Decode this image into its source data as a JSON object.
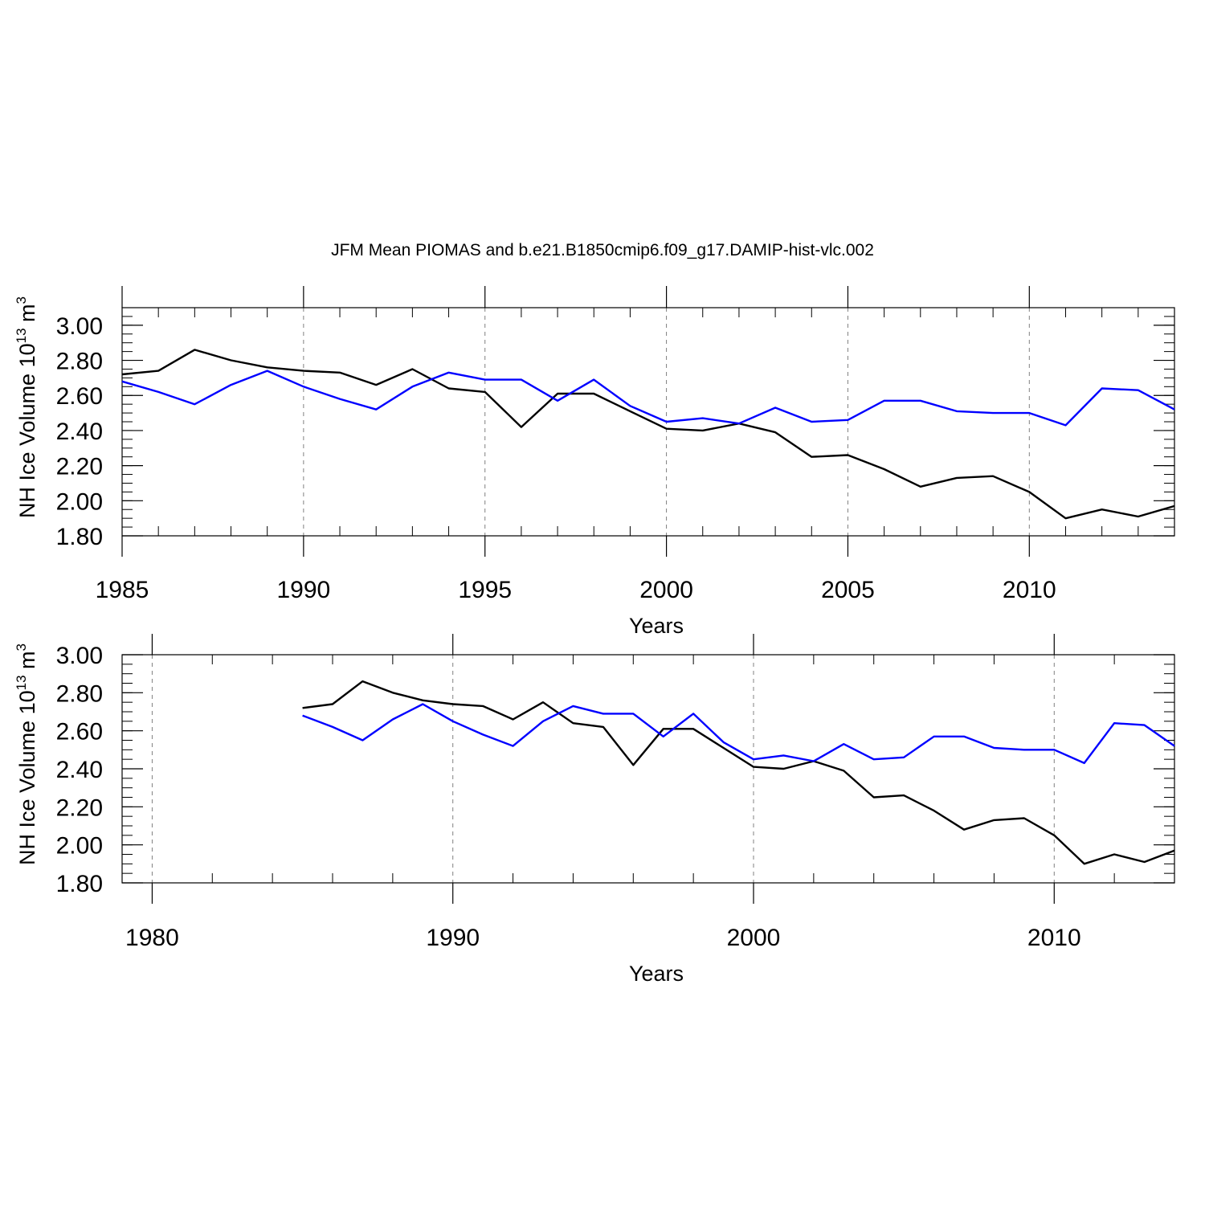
{
  "title": "JFM Mean PIOMAS and b.e21.B1850cmip6.f09_g17.DAMIP-hist-vlc.002",
  "colors": {
    "piomas": "#000000",
    "model": "#0000ff",
    "grid": "#808080",
    "axis": "#000000"
  },
  "chart_data": [
    {
      "type": "line",
      "xlabel": "Years",
      "ylabel": {
        "text": "NH Ice Volume 10",
        "sup1": "13",
        "unit": " m",
        "sup2": "3"
      },
      "xlim": [
        1985,
        2014
      ],
      "ylim": [
        1.8,
        3.1
      ],
      "x_major_ticks": [
        1985,
        1990,
        1995,
        2000,
        2005,
        2010
      ],
      "x_minor_step": 1,
      "y_ticks": [
        1.8,
        2.0,
        2.2,
        2.4,
        2.6,
        2.8,
        3.0
      ],
      "y_tick_labels": [
        "1.80",
        "2.00",
        "2.20",
        "2.40",
        "2.60",
        "2.80",
        "3.00"
      ],
      "y_minor_step": 0.05,
      "grid": "dashed vertical at major x ticks",
      "x": [
        1985,
        1986,
        1987,
        1988,
        1989,
        1990,
        1991,
        1992,
        1993,
        1994,
        1995,
        1996,
        1997,
        1998,
        1999,
        2000,
        2001,
        2002,
        2003,
        2004,
        2005,
        2006,
        2007,
        2008,
        2009,
        2010,
        2011,
        2012,
        2013,
        2014
      ],
      "series": [
        {
          "color": "#000000",
          "values": [
            2.72,
            2.74,
            2.86,
            2.8,
            2.76,
            2.74,
            2.73,
            2.66,
            2.75,
            2.64,
            2.62,
            2.42,
            2.61,
            2.61,
            2.51,
            2.41,
            2.4,
            2.44,
            2.39,
            2.25,
            2.26,
            2.18,
            2.08,
            2.13,
            2.14,
            2.05,
            1.9,
            1.95,
            1.91,
            1.97
          ]
        },
        {
          "color": "#0000ff",
          "values": [
            2.68,
            2.62,
            2.55,
            2.66,
            2.74,
            2.65,
            2.58,
            2.52,
            2.65,
            2.73,
            2.69,
            2.69,
            2.57,
            2.69,
            2.54,
            2.45,
            2.47,
            2.44,
            2.53,
            2.45,
            2.46,
            2.57,
            2.57,
            2.51,
            2.5,
            2.5,
            2.43,
            2.64,
            2.63,
            2.52
          ]
        }
      ]
    },
    {
      "type": "line",
      "xlabel": "Years",
      "ylabel": {
        "text": "NH Ice Volume 10",
        "sup1": "13",
        "unit": " m",
        "sup2": "3"
      },
      "xlim": [
        1979,
        2014
      ],
      "ylim": [
        1.8,
        3.0
      ],
      "x_major_ticks": [
        1980,
        1990,
        2000,
        2010
      ],
      "x_minor_step": 2,
      "y_ticks": [
        1.8,
        2.0,
        2.2,
        2.4,
        2.6,
        2.8,
        3.0
      ],
      "y_tick_labels": [
        "1.80",
        "2.00",
        "2.20",
        "2.40",
        "2.60",
        "2.80",
        "3.00"
      ],
      "y_minor_step": 0.05,
      "grid": "dashed vertical at major x ticks",
      "x": [
        1985,
        1986,
        1987,
        1988,
        1989,
        1990,
        1991,
        1992,
        1993,
        1994,
        1995,
        1996,
        1997,
        1998,
        1999,
        2000,
        2001,
        2002,
        2003,
        2004,
        2005,
        2006,
        2007,
        2008,
        2009,
        2010,
        2011,
        2012,
        2013,
        2014
      ],
      "series": [
        {
          "color": "#000000",
          "values": [
            2.72,
            2.74,
            2.86,
            2.8,
            2.76,
            2.74,
            2.73,
            2.66,
            2.75,
            2.64,
            2.62,
            2.42,
            2.61,
            2.61,
            2.51,
            2.41,
            2.4,
            2.44,
            2.39,
            2.25,
            2.26,
            2.18,
            2.08,
            2.13,
            2.14,
            2.05,
            1.9,
            1.95,
            1.91,
            1.97
          ]
        },
        {
          "color": "#0000ff",
          "values": [
            2.68,
            2.62,
            2.55,
            2.66,
            2.74,
            2.65,
            2.58,
            2.52,
            2.65,
            2.73,
            2.69,
            2.69,
            2.57,
            2.69,
            2.54,
            2.45,
            2.47,
            2.44,
            2.53,
            2.45,
            2.46,
            2.57,
            2.57,
            2.51,
            2.5,
            2.5,
            2.43,
            2.64,
            2.63,
            2.52
          ]
        }
      ]
    }
  ]
}
